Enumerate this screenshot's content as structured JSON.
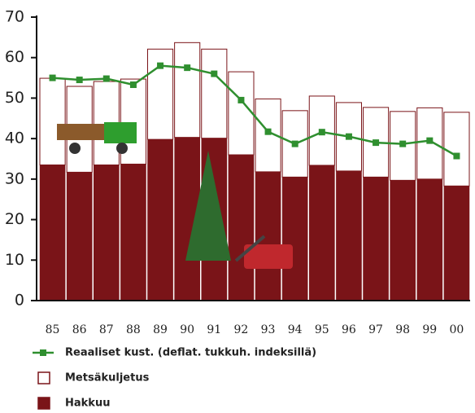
{
  "chart_data": {
    "type": "bar",
    "stacked": true,
    "categories": [
      "85",
      "86",
      "87",
      "88",
      "89",
      "90",
      "91",
      "92",
      "93",
      "94",
      "95",
      "96",
      "97",
      "98",
      "99",
      "00"
    ],
    "ylim": [
      0,
      70
    ],
    "yticks": [
      0,
      10,
      20,
      30,
      40,
      50,
      60,
      70
    ],
    "series": [
      {
        "name": "Hakkuu",
        "type": "bar",
        "color": "#7a1418",
        "values": [
          33.5,
          31.7,
          33.5,
          33.7,
          39.8,
          40.3,
          40.1,
          36,
          31.8,
          30.5,
          33.4,
          32,
          30.5,
          29.7,
          30,
          28.3
        ]
      },
      {
        "name": "Metsäkuljetus",
        "type": "bar",
        "color": "#ffffff",
        "values": [
          21.5,
          21.3,
          20.7,
          21.1,
          22.4,
          23.5,
          22.1,
          20.6,
          18.1,
          16.5,
          17.2,
          17,
          17.3,
          17.1,
          17.7,
          18.3
        ]
      },
      {
        "name": "Reaaliset kust. (deflat. tukkuh. indeksillä)",
        "type": "line",
        "color": "#2f8f2f",
        "values": [
          55,
          54.5,
          54.8,
          53.3,
          58,
          57.5,
          56,
          49.5,
          41.7,
          38.7,
          41.6,
          40.5,
          39,
          38.7,
          39.5,
          35.7
        ]
      }
    ]
  }
}
